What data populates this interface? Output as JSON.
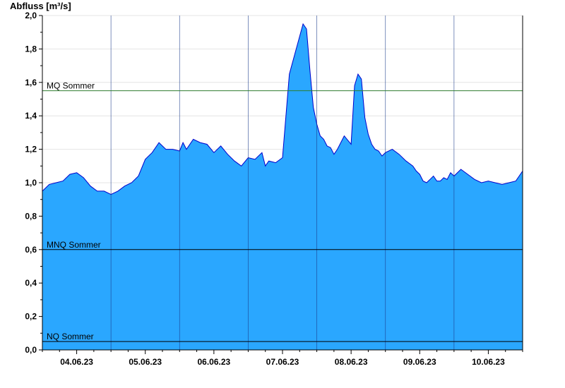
{
  "chart_data": {
    "type": "area",
    "ylabel": "Abfluss [m³/s]",
    "ylim": [
      0,
      2.0
    ],
    "yticks": [
      "0,0",
      "0,2",
      "0,4",
      "0,6",
      "0,8",
      "1,0",
      "1,2",
      "1,4",
      "1,6",
      "1,8",
      "2,0"
    ],
    "x_range": [
      "03.06.23 12:00",
      "10.06.23 24:00"
    ],
    "day_ticks": [
      "04.06.23",
      "05.06.23",
      "06.06.23",
      "07.06.23",
      "08.06.23",
      "09.06.23",
      "10.06.23"
    ],
    "grid": true,
    "fill_color": "#2aa7ff",
    "line_color": "#0000cc",
    "reference_lines": [
      {
        "label": "MQ Sommer",
        "value": 1.55,
        "color": "#2e7d2e"
      },
      {
        "label": "MNQ Sommer",
        "value": 0.6,
        "color": "#000000"
      },
      {
        "label": "NQ Sommer",
        "value": 0.05,
        "color": "#000000"
      }
    ],
    "series": [
      {
        "x_days": [
          0,
          0.1,
          0.2,
          0.3,
          0.4,
          0.5,
          0.6,
          0.7,
          0.8,
          0.9,
          1.0,
          1.1,
          1.2,
          1.3,
          1.4,
          1.5,
          1.6,
          1.7,
          1.8,
          1.9,
          2.0,
          2.05,
          2.1,
          2.2,
          2.3,
          2.4,
          2.5,
          2.6,
          2.7,
          2.8,
          2.9,
          3.0,
          3.1,
          3.2,
          3.25,
          3.3,
          3.4,
          3.5,
          3.6,
          3.7,
          3.8,
          3.85,
          3.9,
          3.95,
          4.0,
          4.05,
          4.1,
          4.15,
          4.2,
          4.25,
          4.3,
          4.4,
          4.5,
          4.55,
          4.6,
          4.65,
          4.7,
          4.75,
          4.8,
          4.85,
          4.9,
          4.95,
          5.0,
          5.1,
          5.2,
          5.3,
          5.4,
          5.45,
          5.5,
          5.55,
          5.6,
          5.65,
          5.7,
          5.75,
          5.8,
          5.85,
          5.9,
          5.95,
          6.0,
          6.1,
          6.2,
          6.3,
          6.4,
          6.5,
          6.6,
          6.7,
          6.8,
          6.9,
          7.0
        ],
        "y": [
          0.95,
          0.99,
          1.0,
          1.01,
          1.05,
          1.06,
          1.03,
          0.98,
          0.95,
          0.95,
          0.93,
          0.95,
          0.98,
          1.0,
          1.04,
          1.14,
          1.18,
          1.24,
          1.2,
          1.2,
          1.19,
          1.24,
          1.2,
          1.26,
          1.24,
          1.23,
          1.18,
          1.22,
          1.17,
          1.13,
          1.1,
          1.15,
          1.14,
          1.18,
          1.1,
          1.13,
          1.12,
          1.15,
          1.65,
          1.8,
          1.95,
          1.92,
          1.67,
          1.45,
          1.35,
          1.28,
          1.26,
          1.22,
          1.21,
          1.17,
          1.2,
          1.28,
          1.23,
          1.58,
          1.65,
          1.62,
          1.39,
          1.29,
          1.23,
          1.2,
          1.19,
          1.16,
          1.18,
          1.2,
          1.17,
          1.13,
          1.1,
          1.07,
          1.05,
          1.01,
          1.0,
          1.02,
          1.04,
          1.01,
          1.01,
          1.03,
          1.02,
          1.06,
          1.04,
          1.08,
          1.05,
          1.02,
          1.0,
          1.01,
          1.0,
          0.99,
          1.0,
          1.01,
          1.07
        ]
      }
    ]
  }
}
